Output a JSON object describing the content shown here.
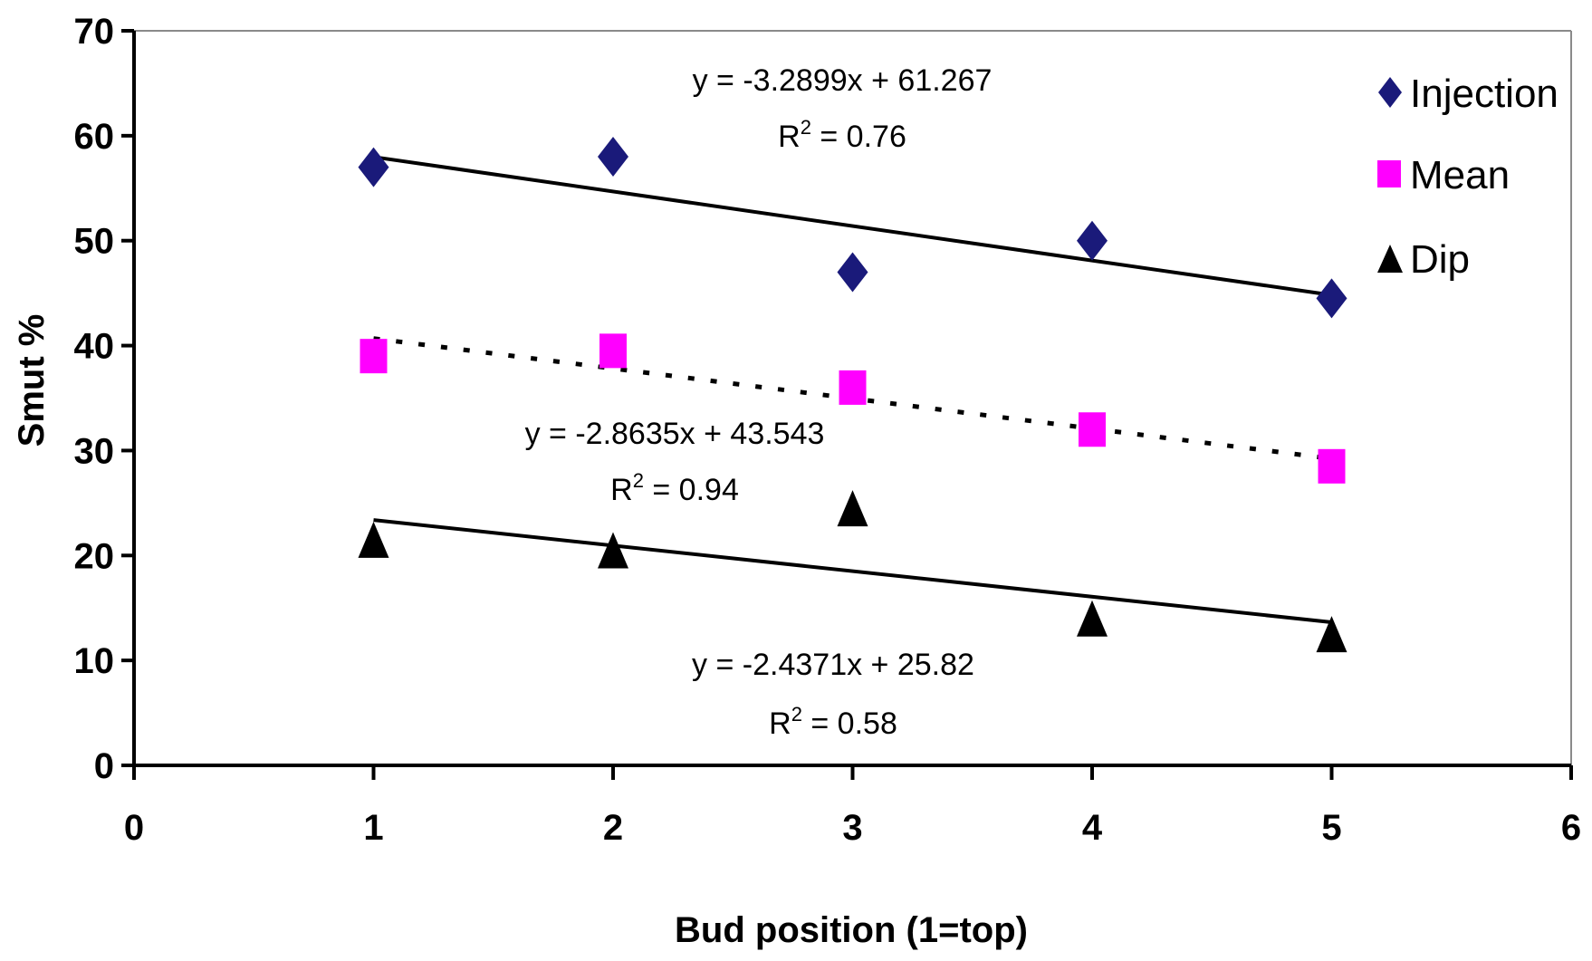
{
  "chart_data": {
    "type": "scatter",
    "xlabel": "Bud position (1=top)",
    "ylabel": "Smut %",
    "xlim": [
      0,
      6
    ],
    "ylim": [
      0,
      70
    ],
    "x_ticks": [
      0,
      1,
      2,
      3,
      4,
      5,
      6
    ],
    "y_ticks": [
      0,
      10,
      20,
      30,
      40,
      50,
      60,
      70
    ],
    "grid": false,
    "legend_position": "top-right",
    "series": [
      {
        "name": "Injection",
        "marker": "diamond",
        "color": "#1A1A7A",
        "x": [
          1,
          2,
          3,
          4,
          5
        ],
        "y": [
          57,
          58,
          47,
          50,
          44.5
        ],
        "trendline": {
          "slope": -3.2899,
          "intercept": 61.267,
          "style": "solid",
          "equation": "y = -3.2899x + 61.267",
          "r2_prefix": "R",
          "r2_sup": "2",
          "r2_value": " = 0.76"
        }
      },
      {
        "name": "Mean",
        "marker": "square",
        "color": "#FF00FF",
        "x": [
          1,
          2,
          3,
          4,
          5
        ],
        "y": [
          39,
          39.5,
          36,
          32,
          28.5
        ],
        "trendline": {
          "slope": -2.8635,
          "intercept": 43.543,
          "style": "dotted",
          "equation": "y = -2.8635x + 43.543",
          "r2_prefix": "R",
          "r2_sup": "2",
          "r2_value": " = 0.94"
        }
      },
      {
        "name": "Dip",
        "marker": "triangle",
        "color": "#000000",
        "x": [
          1,
          2,
          3,
          4,
          5
        ],
        "y": [
          21.5,
          20.5,
          24.5,
          14,
          12.5
        ],
        "trendline": {
          "slope": -2.4371,
          "intercept": 25.82,
          "style": "solid",
          "equation": "y = -2.4371x + 25.82",
          "r2_prefix": "R",
          "r2_sup": "2",
          "r2_value": " = 0.58"
        }
      }
    ]
  }
}
